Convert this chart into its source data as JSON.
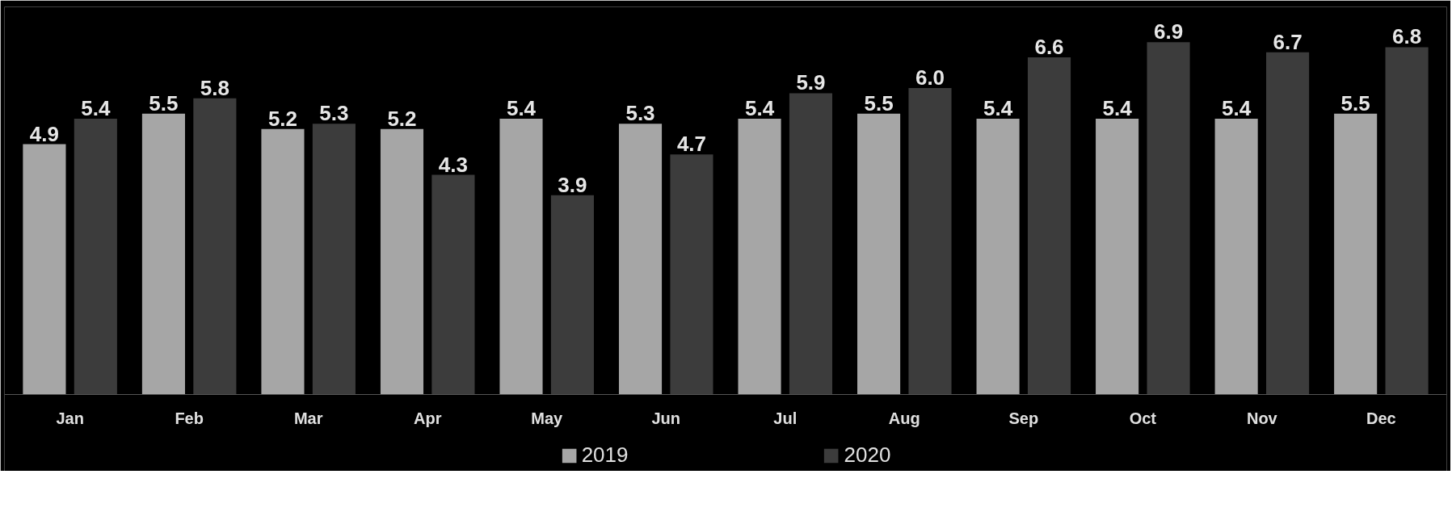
{
  "chart_data": {
    "type": "bar",
    "categories": [
      "Jan",
      "Feb",
      "Mar",
      "Apr",
      "May",
      "Jun",
      "Jul",
      "Aug",
      "Sep",
      "Oct",
      "Nov",
      "Dec"
    ],
    "series": [
      {
        "name": "2019",
        "color": "#a6a6a6",
        "values": [
          4.9,
          5.5,
          5.2,
          5.2,
          5.4,
          5.3,
          5.4,
          5.5,
          5.4,
          5.4,
          5.4,
          5.5
        ],
        "value_labels": [
          "4.9",
          "5.5",
          "5.2",
          "5.2",
          "5.4",
          "5.3",
          "5.4",
          "5.5",
          "5.4",
          "5.4",
          "5.4",
          "5.5"
        ]
      },
      {
        "name": "2020",
        "color": "#3c3c3c",
        "values": [
          5.4,
          5.8,
          5.3,
          4.3,
          3.9,
          4.7,
          5.9,
          6.0,
          6.6,
          6.9,
          6.7,
          6.8
        ],
        "value_labels": [
          "5.4",
          "5.8",
          "5.3",
          "4.3",
          "3.9",
          "4.7",
          "5.9",
          "6.0",
          "6.6",
          "6.9",
          "6.7",
          "6.8"
        ]
      }
    ],
    "legend": "bottom",
    "grid": false
  }
}
